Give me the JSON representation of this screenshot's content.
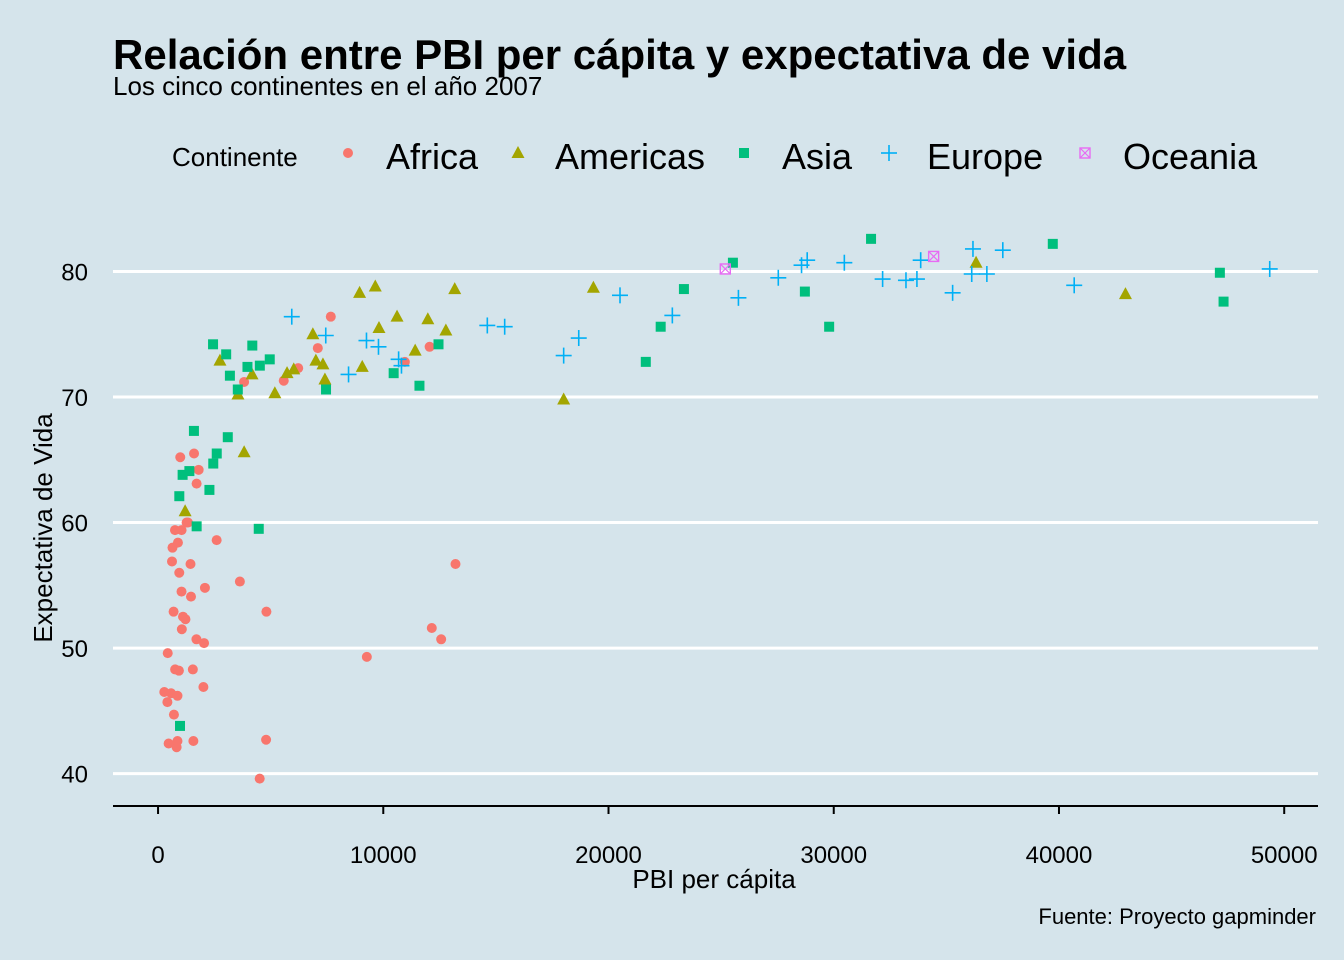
{
  "chart_data": {
    "type": "scatter",
    "title": "Relación entre PBI per cápita y expectativa de vida",
    "subtitle": "Los cinco continentes en el año 2007",
    "xlabel": "PBI per cápita",
    "ylabel": "Expectativa de Vida",
    "caption": "Fuente: Proyecto gapminder",
    "xlim": [
      -2000,
      51500
    ],
    "ylim": [
      37.5,
      84.5
    ],
    "x_ticks": [
      0,
      10000,
      20000,
      30000,
      40000,
      50000
    ],
    "y_ticks": [
      40,
      50,
      60,
      70,
      80
    ],
    "grid": "horizontal major lines only",
    "legend": {
      "title": "Continente",
      "position": "top"
    },
    "series": [
      {
        "name": "Africa",
        "color": "#F8766D",
        "shape": "circle",
        "points": [
          [
            6223,
            72.3
          ],
          [
            4797,
            42.7
          ],
          [
            1441,
            56.7
          ],
          [
            12570,
            50.7
          ],
          [
            1217,
            52.3
          ],
          [
            430,
            49.6
          ],
          [
            2042,
            50.4
          ],
          [
            706,
            44.7
          ],
          [
            1704,
            50.7
          ],
          [
            986,
            65.2
          ],
          [
            277,
            46.5
          ],
          [
            3633,
            55.3
          ],
          [
            1545,
            48.3
          ],
          [
            2082,
            54.8
          ],
          [
            5581,
            71.3
          ],
          [
            12154,
            51.6
          ],
          [
            641,
            58.0
          ],
          [
            690,
            52.9
          ],
          [
            13206,
            56.7
          ],
          [
            753,
            59.4
          ],
          [
            1327,
            60.0
          ],
          [
            942,
            56.0
          ],
          [
            579,
            46.4
          ],
          [
            1463,
            54.1
          ],
          [
            1569,
            42.6
          ],
          [
            415,
            45.7
          ],
          [
            12057,
            74.0
          ],
          [
            1044,
            59.4
          ],
          [
            759,
            48.3
          ],
          [
            1042,
            54.5
          ],
          [
            1803,
            64.2
          ],
          [
            10957,
            72.8
          ],
          [
            3820,
            71.2
          ],
          [
            824,
            42.1
          ],
          [
            4811,
            52.9
          ],
          [
            620,
            56.9
          ],
          [
            2014,
            46.9
          ],
          [
            7670,
            76.4
          ],
          [
            863,
            46.2
          ],
          [
            1598,
            65.5
          ],
          [
            1712,
            63.1
          ],
          [
            862,
            42.6
          ],
          [
            926,
            48.2
          ],
          [
            9270,
            49.3
          ],
          [
            2602,
            58.6
          ],
          [
            4513,
            39.6
          ],
          [
            1108,
            52.5
          ],
          [
            883,
            58.4
          ],
          [
            7093,
            73.9
          ],
          [
            1056,
            51.5
          ],
          [
            470,
            42.4
          ],
          [
            1268,
            60.0
          ]
        ]
      },
      {
        "name": "Americas",
        "color": "#A3A500",
        "shape": "triangle",
        "points": [
          [
            12779,
            75.3
          ],
          [
            3822,
            65.6
          ],
          [
            9066,
            72.4
          ],
          [
            36319,
            80.7
          ],
          [
            13172,
            78.6
          ],
          [
            7007,
            72.9
          ],
          [
            9645,
            78.8
          ],
          [
            8948,
            78.3
          ],
          [
            6025,
            72.2
          ],
          [
            6873,
            75.0
          ],
          [
            5728,
            71.9
          ],
          [
            5186,
            70.3
          ],
          [
            1202,
            60.9
          ],
          [
            3548,
            70.2
          ],
          [
            7321,
            72.6
          ],
          [
            11978,
            76.2
          ],
          [
            2749,
            72.9
          ],
          [
            9809,
            75.5
          ],
          [
            4173,
            71.8
          ],
          [
            7409,
            71.4
          ],
          [
            19329,
            78.7
          ],
          [
            18009,
            69.8
          ],
          [
            42952,
            78.2
          ],
          [
            10611,
            76.4
          ],
          [
            11416,
            73.7
          ]
        ]
      },
      {
        "name": "Asia",
        "color": "#00BF7D",
        "shape": "square",
        "points": [
          [
            975,
            43.8
          ],
          [
            29796,
            75.6
          ],
          [
            1391,
            64.1
          ],
          [
            1714,
            59.7
          ],
          [
            4959,
            73.0
          ],
          [
            39725,
            82.2
          ],
          [
            2452,
            64.7
          ],
          [
            3541,
            70.6
          ],
          [
            11606,
            70.9
          ],
          [
            4471,
            59.5
          ],
          [
            25523,
            80.7
          ],
          [
            31656,
            82.6
          ],
          [
            4519,
            72.5
          ],
          [
            1593,
            67.3
          ],
          [
            23348,
            78.6
          ],
          [
            47307,
            77.6
          ],
          [
            10461,
            71.9
          ],
          [
            12452,
            74.2
          ],
          [
            3096,
            66.8
          ],
          [
            944,
            62.1
          ],
          [
            1091,
            63.8
          ],
          [
            22316,
            75.6
          ],
          [
            2606,
            65.5
          ],
          [
            3190,
            71.7
          ],
          [
            21655,
            72.8
          ],
          [
            47143,
            79.9
          ],
          [
            3970,
            72.4
          ],
          [
            4185,
            74.1
          ],
          [
            28718,
            78.4
          ],
          [
            7458,
            70.6
          ],
          [
            2442,
            74.2
          ],
          [
            3025,
            73.4
          ],
          [
            2281,
            62.6
          ]
        ]
      },
      {
        "name": "Europe",
        "color": "#00B0F6",
        "shape": "plus",
        "points": [
          [
            5937,
            76.4
          ],
          [
            36126,
            79.8
          ],
          [
            33693,
            79.4
          ],
          [
            7446,
            74.9
          ],
          [
            10681,
            73.0
          ],
          [
            14619,
            75.7
          ],
          [
            22834,
            76.5
          ],
          [
            35278,
            78.3
          ],
          [
            33207,
            79.3
          ],
          [
            30470,
            80.7
          ],
          [
            32170,
            79.4
          ],
          [
            27538,
            79.5
          ],
          [
            18009,
            73.3
          ],
          [
            36181,
            81.8
          ],
          [
            40676,
            78.9
          ],
          [
            28570,
            80.5
          ],
          [
            9254,
            74.5
          ],
          [
            36798,
            79.8
          ],
          [
            49357,
            80.2
          ],
          [
            15390,
            75.6
          ],
          [
            20510,
            78.1
          ],
          [
            10808,
            72.5
          ],
          [
            9787,
            74.0
          ],
          [
            18678,
            74.7
          ],
          [
            25768,
            77.9
          ],
          [
            28821,
            80.9
          ],
          [
            33860,
            80.9
          ],
          [
            37506,
            81.7
          ],
          [
            8458,
            71.8
          ]
        ]
      },
      {
        "name": "Oceania",
        "color": "#E76BF3",
        "shape": "square-cross",
        "points": [
          [
            34435,
            81.2
          ],
          [
            25185,
            80.2
          ]
        ]
      }
    ]
  }
}
